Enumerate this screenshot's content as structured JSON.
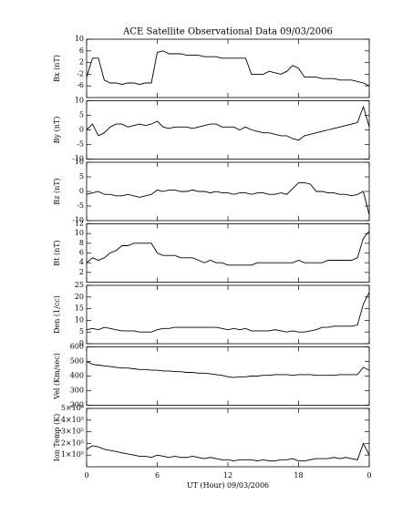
{
  "chart_data": [
    {
      "type": "line",
      "title": "ACE Satellite Observational Data   09/03/2006",
      "ylabel": "Bx (nT)",
      "color": "#000000",
      "x": [
        0,
        0.5,
        1,
        1.5,
        2,
        2.5,
        3,
        3.5,
        4,
        4.5,
        5,
        5.5,
        6,
        6.5,
        7,
        7.5,
        8,
        8.5,
        9,
        9.5,
        10,
        10.5,
        11,
        11.5,
        12,
        12.5,
        13,
        13.5,
        14,
        14.5,
        15,
        15.5,
        16,
        16.5,
        17,
        17.5,
        18,
        18.5,
        19,
        19.5,
        20,
        20.5,
        21,
        21.5,
        22,
        22.5,
        23,
        23.5,
        24
      ],
      "values": [
        -3,
        3.5,
        3.5,
        -4,
        -5,
        -5,
        -5.5,
        -5,
        -5,
        -5.5,
        -5,
        -5,
        5.5,
        6,
        5,
        5,
        5,
        4.5,
        4.5,
        4.5,
        4,
        4,
        4,
        3.5,
        3.5,
        3.5,
        3.5,
        3.5,
        -2,
        -2,
        -2,
        -1,
        -1.5,
        -2,
        -1,
        1,
        0,
        -3,
        -3,
        -3,
        -3.5,
        -3.5,
        -3.5,
        -4,
        -4,
        -4,
        -4.5,
        -5,
        -6
      ],
      "xlim": [
        0,
        24
      ],
      "xticks": [
        0,
        6,
        12,
        18,
        24
      ],
      "ylim": [
        -10,
        10
      ],
      "yticks": [
        -6,
        -2,
        2,
        6,
        10
      ]
    },
    {
      "type": "line",
      "ylabel": "By (nT)",
      "color": "#000000",
      "x": [
        0,
        0.5,
        1,
        1.5,
        2,
        2.5,
        3,
        3.5,
        4,
        4.5,
        5,
        5.5,
        6,
        6.5,
        7,
        7.5,
        8,
        8.5,
        9,
        9.5,
        10,
        10.5,
        11,
        11.5,
        12,
        12.5,
        13,
        13.5,
        14,
        14.5,
        15,
        15.5,
        16,
        16.5,
        17,
        17.5,
        18,
        18.5,
        19,
        19.5,
        20,
        20.5,
        21,
        21.5,
        22,
        22.5,
        23,
        23.5,
        24
      ],
      "values": [
        0,
        2,
        -2,
        -1,
        1,
        2,
        2,
        1,
        1.5,
        2,
        1.5,
        2,
        3,
        1,
        0.5,
        1,
        1,
        1,
        0.5,
        1,
        1.5,
        2,
        2,
        1,
        1,
        1,
        0,
        1,
        0,
        -0.5,
        -1,
        -1,
        -1.5,
        -2,
        -2,
        -3,
        -3.5,
        -2,
        -1.5,
        -1,
        -0.5,
        0,
        0.5,
        1,
        1.5,
        2,
        2.5,
        8,
        1
      ],
      "xlim": [
        0,
        24
      ],
      "xticks": [
        0,
        6,
        12,
        18,
        24
      ],
      "ylim": [
        -10,
        10
      ],
      "yticks": [
        -10,
        -5,
        0,
        5,
        10
      ]
    },
    {
      "type": "line",
      "ylabel": "Bz (nT)",
      "color": "#000000",
      "x": [
        0,
        0.5,
        1,
        1.5,
        2,
        2.5,
        3,
        3.5,
        4,
        4.5,
        5,
        5.5,
        6,
        6.5,
        7,
        7.5,
        8,
        8.5,
        9,
        9.5,
        10,
        10.5,
        11,
        11.5,
        12,
        12.5,
        13,
        13.5,
        14,
        14.5,
        15,
        15.5,
        16,
        16.5,
        17,
        17.5,
        18,
        18.5,
        19,
        19.5,
        20,
        20.5,
        21,
        21.5,
        22,
        22.5,
        23,
        23.5,
        24
      ],
      "values": [
        -1,
        -0.5,
        0,
        -1,
        -1,
        -1.5,
        -1.5,
        -1,
        -1.5,
        -2,
        -1.5,
        -1,
        0.5,
        0,
        0.5,
        0.5,
        0,
        0,
        0.5,
        0,
        0,
        -0.5,
        0,
        -0.5,
        -0.5,
        -1,
        -0.5,
        -0.5,
        -1,
        -0.5,
        -0.5,
        -1,
        -1,
        -0.5,
        -1,
        1,
        3,
        3,
        2.5,
        0,
        0,
        -0.5,
        -0.5,
        -1,
        -1,
        -1.5,
        -1,
        0,
        -8
      ],
      "xlim": [
        0,
        24
      ],
      "xticks": [
        0,
        6,
        12,
        18,
        24
      ],
      "ylim": [
        -10,
        10
      ],
      "yticks": [
        -10,
        -5,
        0,
        5,
        10
      ]
    },
    {
      "type": "line",
      "ylabel": "Bt (nT)",
      "color": "#000000",
      "x": [
        0,
        0.5,
        1,
        1.5,
        2,
        2.5,
        3,
        3.5,
        4,
        4.5,
        5,
        5.5,
        6,
        6.5,
        7,
        7.5,
        8,
        8.5,
        9,
        9.5,
        10,
        10.5,
        11,
        11.5,
        12,
        12.5,
        13,
        13.5,
        14,
        14.5,
        15,
        15.5,
        16,
        16.5,
        17,
        17.5,
        18,
        18.5,
        19,
        19.5,
        20,
        20.5,
        21,
        21.5,
        22,
        22.5,
        23,
        23.5,
        24
      ],
      "values": [
        4,
        5,
        4.5,
        5,
        6,
        6.5,
        7.5,
        7.5,
        8,
        8,
        8,
        8,
        6,
        5.5,
        5.5,
        5.5,
        5,
        5,
        5,
        4.5,
        4,
        4.5,
        4,
        4,
        3.5,
        3.5,
        3.5,
        3.5,
        3.5,
        4,
        4,
        4,
        4,
        4,
        4,
        4,
        4.5,
        4,
        4,
        4,
        4,
        4.5,
        4.5,
        4.5,
        4.5,
        4.5,
        5,
        9,
        10.5
      ],
      "xlim": [
        0,
        24
      ],
      "xticks": [
        0,
        6,
        12,
        18,
        24
      ],
      "ylim": [
        0,
        12
      ],
      "yticks": [
        2,
        4,
        6,
        8,
        10,
        12
      ]
    },
    {
      "type": "line",
      "ylabel": "Den (1/cc)",
      "color": "#000000",
      "x": [
        0,
        0.5,
        1,
        1.5,
        2,
        2.5,
        3,
        3.5,
        4,
        4.5,
        5,
        5.5,
        6,
        6.5,
        7,
        7.5,
        8,
        8.5,
        9,
        9.5,
        10,
        10.5,
        11,
        11.5,
        12,
        12.5,
        13,
        13.5,
        14,
        14.5,
        15,
        15.5,
        16,
        16.5,
        17,
        17.5,
        18,
        18.5,
        19,
        19.5,
        20,
        20.5,
        21,
        21.5,
        22,
        22.5,
        23,
        23.5,
        24
      ],
      "values": [
        6,
        6.5,
        6,
        7,
        6.5,
        6,
        5.5,
        5.5,
        5.5,
        5,
        5,
        5,
        6,
        6.5,
        6.5,
        7,
        7,
        7,
        7,
        7,
        7,
        7,
        7,
        6.5,
        6,
        6.5,
        6,
        6.5,
        5.5,
        5.5,
        5.5,
        5.5,
        6,
        5.5,
        5,
        5.5,
        5,
        5,
        5.5,
        6,
        7,
        7,
        7.5,
        7.5,
        7.5,
        7.5,
        8,
        17,
        22
      ],
      "xlim": [
        0,
        24
      ],
      "xticks": [
        0,
        6,
        12,
        18,
        24
      ],
      "ylim": [
        0,
        25
      ],
      "yticks": [
        0,
        5,
        10,
        15,
        20,
        25
      ]
    },
    {
      "type": "line",
      "ylabel": "Vel (Km/sec)",
      "color": "#000000",
      "x": [
        0,
        0.5,
        1,
        1.5,
        2,
        2.5,
        3,
        3.5,
        4,
        4.5,
        5,
        5.5,
        6,
        6.5,
        7,
        7.5,
        8,
        8.5,
        9,
        9.5,
        10,
        10.5,
        11,
        11.5,
        12,
        12.5,
        13,
        13.5,
        14,
        14.5,
        15,
        15.5,
        16,
        16.5,
        17,
        17.5,
        18,
        18.5,
        19,
        19.5,
        20,
        20.5,
        21,
        21.5,
        22,
        22.5,
        23,
        23.5,
        24
      ],
      "values": [
        500,
        480,
        475,
        470,
        465,
        460,
        455,
        455,
        450,
        445,
        445,
        440,
        440,
        435,
        435,
        430,
        430,
        425,
        425,
        420,
        420,
        415,
        410,
        405,
        395,
        390,
        395,
        395,
        400,
        400,
        405,
        405,
        410,
        410,
        410,
        405,
        410,
        410,
        410,
        405,
        405,
        405,
        405,
        410,
        410,
        410,
        410,
        460,
        440
      ],
      "xlim": [
        0,
        24
      ],
      "xticks": [
        0,
        6,
        12,
        18,
        24
      ],
      "ylim": [
        200,
        600
      ],
      "yticks": [
        200,
        300,
        400,
        500,
        600
      ]
    },
    {
      "type": "line",
      "ylabel": "Ion Temp (K)",
      "xlabel": "UT (Hour)  09/03/2006",
      "color": "#000000",
      "x": [
        0,
        0.5,
        1,
        1.5,
        2,
        2.5,
        3,
        3.5,
        4,
        4.5,
        5,
        5.5,
        6,
        6.5,
        7,
        7.5,
        8,
        8.5,
        9,
        9.5,
        10,
        10.5,
        11,
        11.5,
        12,
        12.5,
        13,
        13.5,
        14,
        14.5,
        15,
        15.5,
        16,
        16.5,
        17,
        17.5,
        18,
        18.5,
        19,
        19.5,
        20,
        20.5,
        21,
        21.5,
        22,
        22.5,
        23,
        23.5,
        24
      ],
      "values": [
        150000,
        180000,
        170000,
        150000,
        140000,
        130000,
        120000,
        110000,
        100000,
        90000,
        90000,
        80000,
        100000,
        90000,
        80000,
        90000,
        80000,
        80000,
        90000,
        80000,
        70000,
        80000,
        70000,
        60000,
        60000,
        50000,
        60000,
        60000,
        60000,
        50000,
        60000,
        50000,
        50000,
        60000,
        60000,
        70000,
        50000,
        50000,
        60000,
        70000,
        70000,
        70000,
        80000,
        70000,
        80000,
        70000,
        60000,
        200000,
        100000
      ],
      "xlim": [
        0,
        24
      ],
      "xticks": [
        0,
        6,
        12,
        18,
        {
          "value": 24,
          "label": "0"
        }
      ],
      "ylim": [
        0,
        500000
      ],
      "yticks": [
        {
          "value": 100000,
          "label": "1×10⁵"
        },
        {
          "value": 200000,
          "label": "2×10⁵"
        },
        {
          "value": 300000,
          "label": "3×10⁵"
        },
        {
          "value": 400000,
          "label": "4×10⁵"
        },
        {
          "value": 500000,
          "label": "5×10⁵"
        }
      ]
    }
  ]
}
